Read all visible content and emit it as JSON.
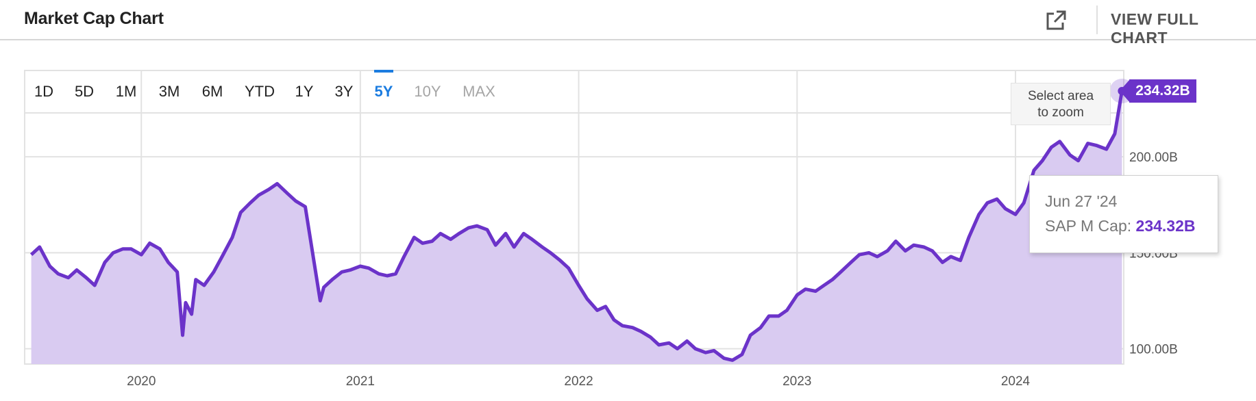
{
  "header": {
    "title": "Market Cap Chart",
    "external_icon": "external-link-icon",
    "view_full_chart": "VIEW FULL CHART"
  },
  "range_buttons": [
    {
      "label": "1D",
      "state": "normal"
    },
    {
      "label": "5D",
      "state": "normal"
    },
    {
      "label": "1M",
      "state": "normal"
    },
    {
      "label": "3M",
      "state": "normal"
    },
    {
      "label": "6M",
      "state": "normal"
    },
    {
      "label": "YTD",
      "state": "normal"
    },
    {
      "label": "1Y",
      "state": "normal"
    },
    {
      "label": "3Y",
      "state": "normal"
    },
    {
      "label": "5Y",
      "state": "active"
    },
    {
      "label": "10Y",
      "state": "disabled"
    },
    {
      "label": "MAX",
      "state": "disabled"
    }
  ],
  "zoom_hint": {
    "line1": "Select area",
    "line2": "to zoom"
  },
  "tooltip": {
    "date": "Jun 27 '24",
    "label": "SAP M Cap:",
    "value": "234.32B"
  },
  "last_value_badge": "234.32B",
  "colors": {
    "line": "#6b33c9",
    "area": "#d9cbf1",
    "active": "#1b7ce0",
    "grid": "#e2e2e2"
  },
  "chart_data": {
    "type": "area",
    "series": [
      {
        "name": "SAP M Cap",
        "unit": "B",
        "points": [
          [
            "2019-07-01",
            149
          ],
          [
            "2019-07-15",
            153
          ],
          [
            "2019-08-01",
            143
          ],
          [
            "2019-08-15",
            139
          ],
          [
            "2019-09-01",
            137
          ],
          [
            "2019-09-15",
            141
          ],
          [
            "2019-10-01",
            137
          ],
          [
            "2019-10-15",
            133
          ],
          [
            "2019-11-01",
            145
          ],
          [
            "2019-11-15",
            150
          ],
          [
            "2019-12-01",
            152
          ],
          [
            "2019-12-15",
            152
          ],
          [
            "2020-01-01",
            149
          ],
          [
            "2020-01-15",
            155
          ],
          [
            "2020-02-01",
            152
          ],
          [
            "2020-02-15",
            145
          ],
          [
            "2020-03-01",
            140
          ],
          [
            "2020-03-10",
            107
          ],
          [
            "2020-03-15",
            124
          ],
          [
            "2020-03-25",
            118
          ],
          [
            "2020-04-01",
            136
          ],
          [
            "2020-04-15",
            133
          ],
          [
            "2020-05-01",
            140
          ],
          [
            "2020-05-15",
            148
          ],
          [
            "2020-06-01",
            158
          ],
          [
            "2020-06-15",
            171
          ],
          [
            "2020-07-01",
            176
          ],
          [
            "2020-07-15",
            180
          ],
          [
            "2020-08-01",
            183
          ],
          [
            "2020-08-15",
            186
          ],
          [
            "2020-09-01",
            181
          ],
          [
            "2020-09-15",
            177
          ],
          [
            "2020-10-01",
            174
          ],
          [
            "2020-10-26",
            125
          ],
          [
            "2020-11-01",
            132
          ],
          [
            "2020-11-15",
            136
          ],
          [
            "2020-12-01",
            140
          ],
          [
            "2020-12-15",
            141
          ],
          [
            "2021-01-01",
            143
          ],
          [
            "2021-01-15",
            142
          ],
          [
            "2021-02-01",
            139
          ],
          [
            "2021-02-15",
            138
          ],
          [
            "2021-03-01",
            139
          ],
          [
            "2021-03-15",
            148
          ],
          [
            "2021-04-01",
            158
          ],
          [
            "2021-04-15",
            155
          ],
          [
            "2021-05-01",
            156
          ],
          [
            "2021-05-15",
            160
          ],
          [
            "2021-06-01",
            157
          ],
          [
            "2021-06-15",
            160
          ],
          [
            "2021-07-01",
            163
          ],
          [
            "2021-07-15",
            164
          ],
          [
            "2021-08-01",
            162
          ],
          [
            "2021-08-15",
            154
          ],
          [
            "2021-09-01",
            160
          ],
          [
            "2021-09-15",
            153
          ],
          [
            "2021-10-01",
            160
          ],
          [
            "2021-10-15",
            157
          ],
          [
            "2021-11-01",
            153
          ],
          [
            "2021-11-15",
            150
          ],
          [
            "2021-12-01",
            146
          ],
          [
            "2021-12-15",
            142
          ],
          [
            "2022-01-01",
            133
          ],
          [
            "2022-01-15",
            126
          ],
          [
            "2022-02-01",
            120
          ],
          [
            "2022-02-15",
            122
          ],
          [
            "2022-03-01",
            115
          ],
          [
            "2022-03-15",
            112
          ],
          [
            "2022-04-01",
            111
          ],
          [
            "2022-04-15",
            109
          ],
          [
            "2022-05-01",
            106
          ],
          [
            "2022-05-15",
            102
          ],
          [
            "2022-06-01",
            103
          ],
          [
            "2022-06-15",
            100
          ],
          [
            "2022-07-01",
            104
          ],
          [
            "2022-07-15",
            100
          ],
          [
            "2022-08-01",
            98
          ],
          [
            "2022-08-15",
            99
          ],
          [
            "2022-09-01",
            95
          ],
          [
            "2022-09-15",
            94
          ],
          [
            "2022-10-01",
            97
          ],
          [
            "2022-10-15",
            107
          ],
          [
            "2022-11-01",
            111
          ],
          [
            "2022-11-15",
            117
          ],
          [
            "2022-12-01",
            117
          ],
          [
            "2022-12-15",
            120
          ],
          [
            "2023-01-01",
            128
          ],
          [
            "2023-01-15",
            131
          ],
          [
            "2023-02-01",
            130
          ],
          [
            "2023-02-15",
            133
          ],
          [
            "2023-03-01",
            136
          ],
          [
            "2023-03-15",
            140
          ],
          [
            "2023-04-01",
            145
          ],
          [
            "2023-04-15",
            149
          ],
          [
            "2023-05-01",
            150
          ],
          [
            "2023-05-15",
            148
          ],
          [
            "2023-06-01",
            151
          ],
          [
            "2023-06-15",
            156
          ],
          [
            "2023-07-01",
            151
          ],
          [
            "2023-07-15",
            154
          ],
          [
            "2023-08-01",
            153
          ],
          [
            "2023-08-15",
            151
          ],
          [
            "2023-09-01",
            145
          ],
          [
            "2023-09-15",
            148
          ],
          [
            "2023-10-01",
            146
          ],
          [
            "2023-10-15",
            158
          ],
          [
            "2023-11-01",
            170
          ],
          [
            "2023-11-15",
            176
          ],
          [
            "2023-12-01",
            178
          ],
          [
            "2023-12-15",
            173
          ],
          [
            "2024-01-01",
            170
          ],
          [
            "2024-01-15",
            176
          ],
          [
            "2024-02-01",
            193
          ],
          [
            "2024-02-15",
            198
          ],
          [
            "2024-03-01",
            205
          ],
          [
            "2024-03-15",
            208
          ],
          [
            "2024-04-01",
            201
          ],
          [
            "2024-04-15",
            198
          ],
          [
            "2024-05-01",
            207
          ],
          [
            "2024-05-15",
            206
          ],
          [
            "2024-06-01",
            204
          ],
          [
            "2024-06-15",
            212
          ],
          [
            "2024-06-27",
            234.32
          ]
        ]
      }
    ],
    "x_tick_labels": [
      "2020",
      "2021",
      "2022",
      "2023",
      "2024"
    ],
    "y_tick_labels": [
      "100.00B",
      "150.00B",
      "200.00B"
    ],
    "ylim": [
      92,
      245
    ],
    "xlim": [
      "2019-06-20",
      "2024-06-30"
    ],
    "grid": true
  }
}
